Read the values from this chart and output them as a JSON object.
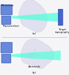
{
  "bg_color": "#f5f5f8",
  "lidar_color": "#6688dd",
  "lidar_edge": "#3355aa",
  "target_color": "#4466cc",
  "target_edge": "#2244aa",
  "beam_cyan": "#55ffdd",
  "beam_alpha_out": 0.6,
  "beam_alpha_in": 0.45,
  "cloud_face": "#e0e0ee",
  "cloud_edge": "#c8c8dc",
  "text_color": "#111111",
  "font_size": 3.2,
  "label_receiver": "Receiver",
  "label_transmitter": "Transmitter",
  "label_target": "Target\ntopography",
  "label_aerosols": "Aerosols",
  "label_a": "(a)",
  "label_b": "(b)"
}
